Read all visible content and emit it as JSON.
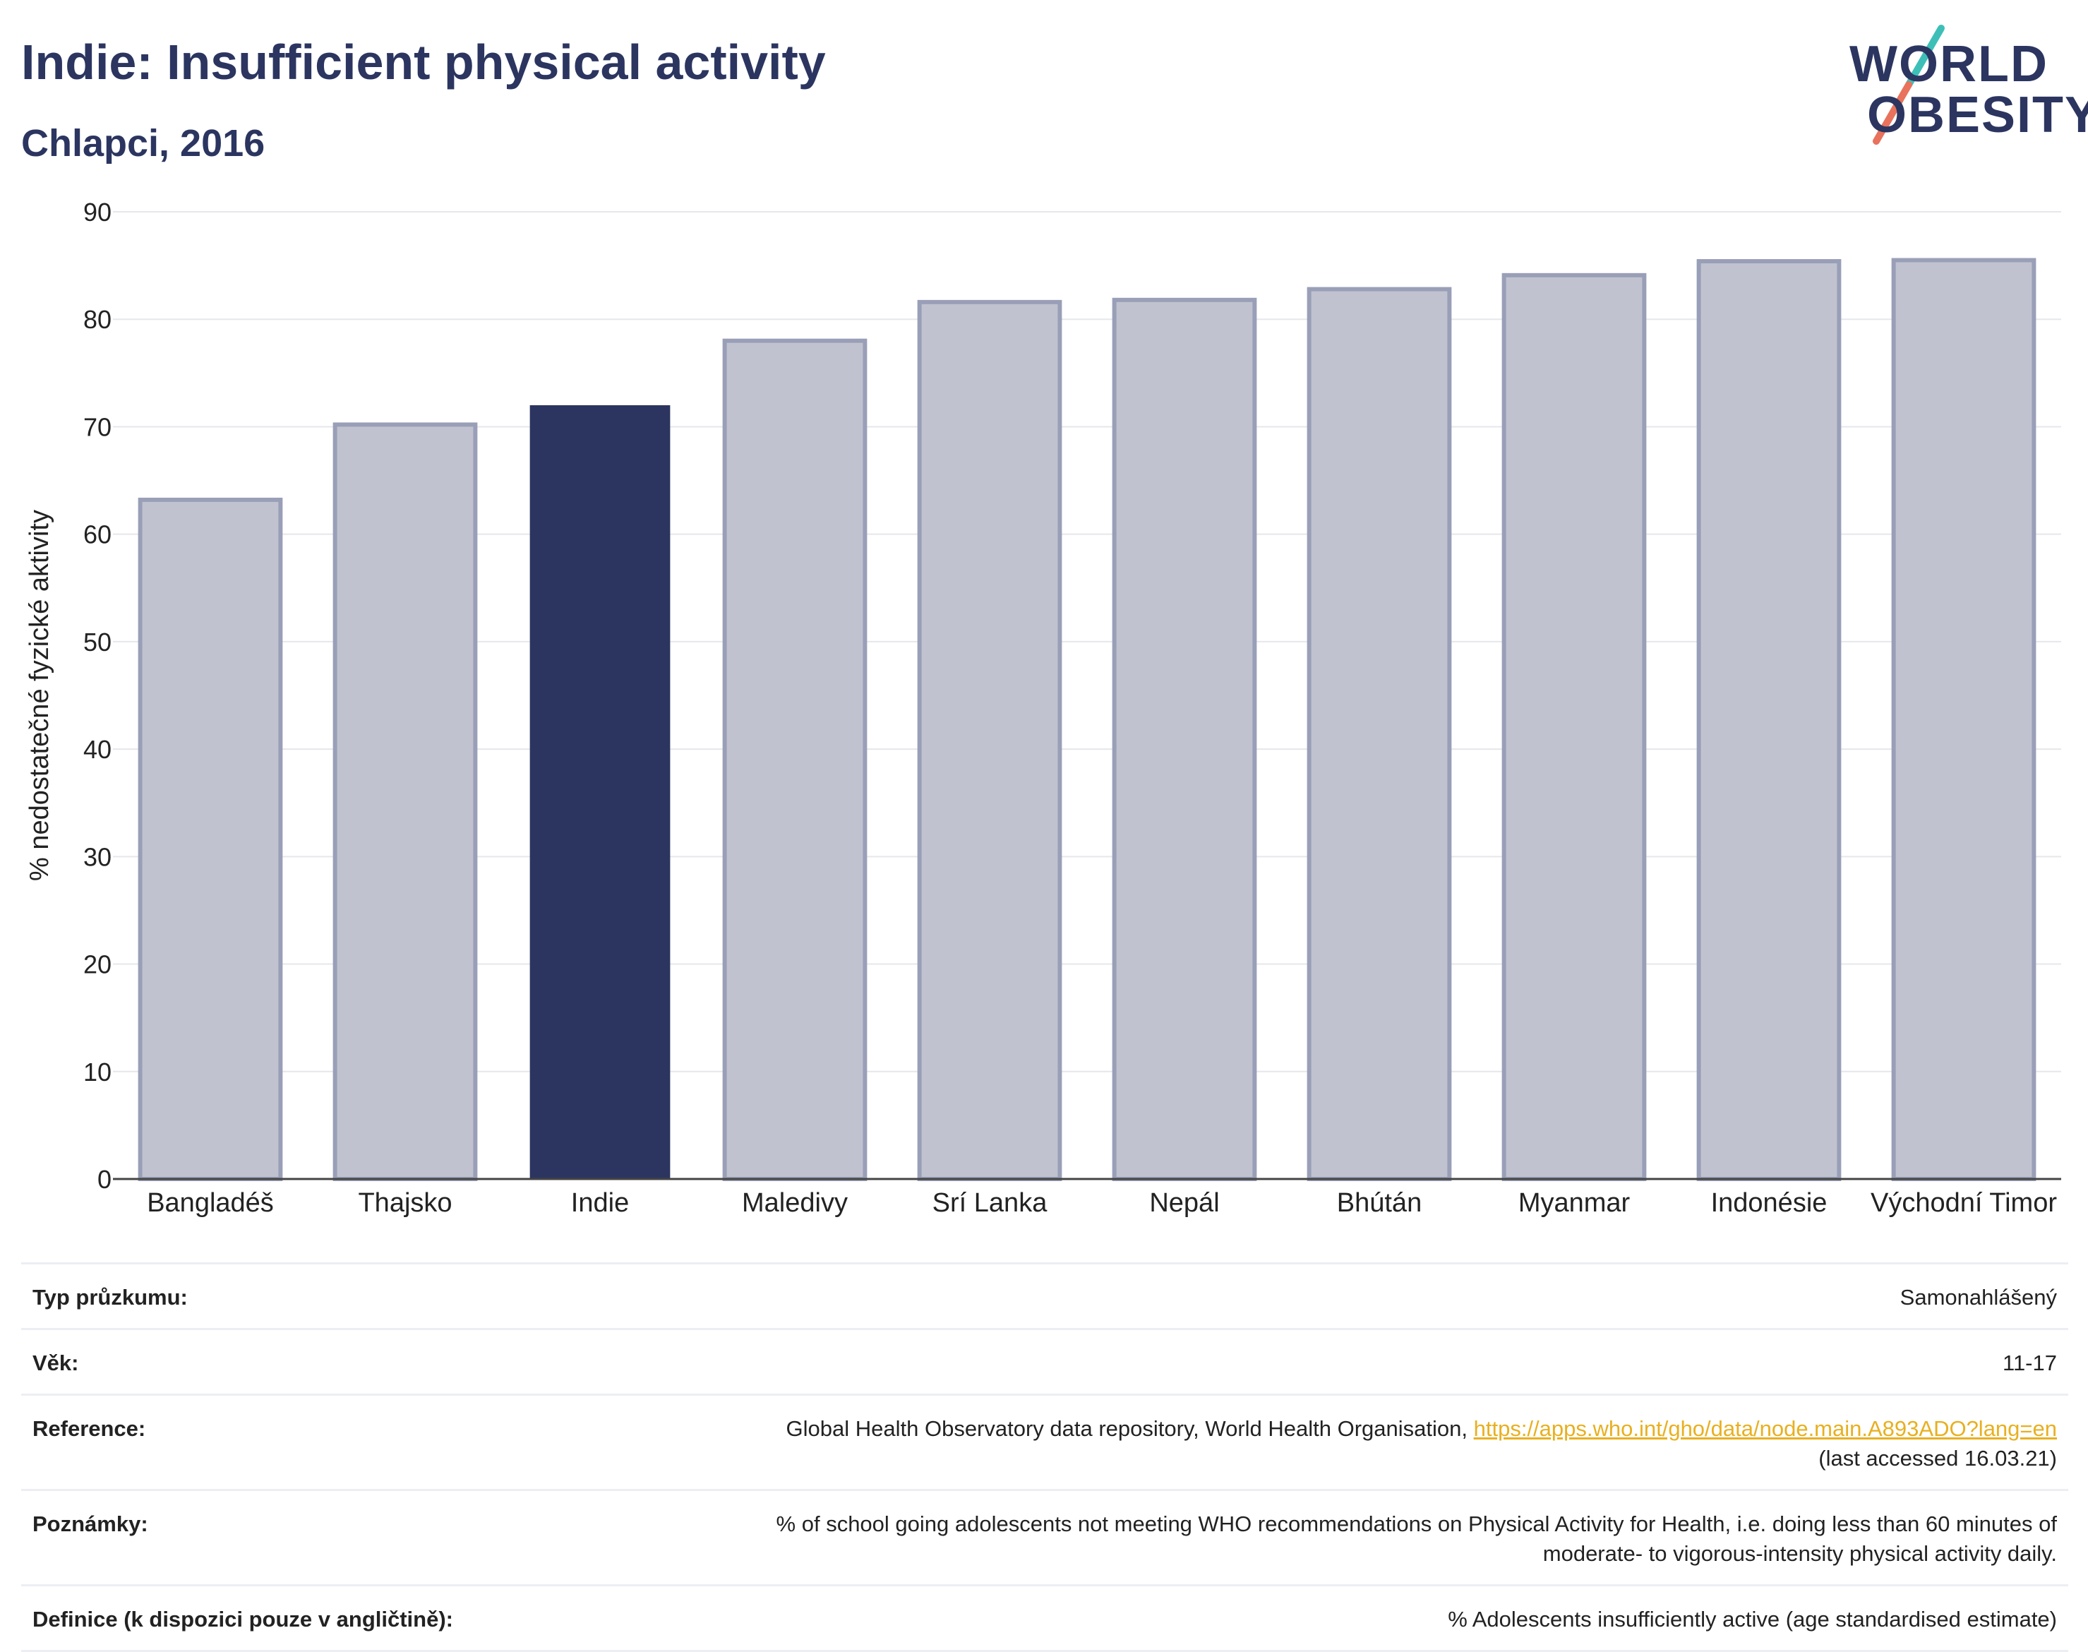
{
  "header": {
    "title": "Indie: Insufficient physical activity",
    "subtitle": "Chlapci, 2016"
  },
  "logo": {
    "line1": "WORLD",
    "line2": "OBESITY",
    "text": "WORLD OBESITY",
    "colors": {
      "text": "#2b3560",
      "slash_teal": "#3dbfb8",
      "slash_coral": "#e8725c"
    }
  },
  "chart_data": {
    "type": "bar",
    "title": "Indie: Insufficient physical activity",
    "subtitle": "Chlapci, 2016",
    "xlabel": "",
    "ylabel": "% nedostatečné fyzické aktivity",
    "ylim": [
      0,
      90
    ],
    "yticks": [
      0,
      10,
      20,
      30,
      40,
      50,
      60,
      70,
      80,
      90
    ],
    "grid": true,
    "categories": [
      "Bangladéš",
      "Thajsko",
      "Indie",
      "Maledivy",
      "Srí Lanka",
      "Nepál",
      "Bhútán",
      "Myanmar",
      "Indonésie",
      "Východní Timor"
    ],
    "values": [
      63.2,
      70.2,
      72.0,
      78.0,
      81.6,
      81.8,
      82.8,
      84.1,
      85.4,
      85.5
    ],
    "highlight": "Indie",
    "colors": {
      "highlight": "#2b3560",
      "other_fill": "#c0c3cf",
      "other_stroke": "#9a9fb8"
    }
  },
  "table": {
    "rows": [
      {
        "label": "Typ průzkumu:",
        "value": "Samonahlášený"
      },
      {
        "label": "Věk:",
        "value": "11-17"
      },
      {
        "label": "Reference:",
        "value": "Global Health Observatory data repository, World Health Organisation, ",
        "link": "https://apps.who.int/gho/data/node.main.A893ADO?lang=en",
        "value2": "(last accessed 16.03.21)"
      },
      {
        "label": "Poznámky:",
        "value": "% of school going adolescents not meeting WHO recommendations on Physical Activity for Health, i.e. doing less than 60 minutes of",
        "value2": "moderate- to vigorous-intensity physical activity daily."
      },
      {
        "label": "Definice (k dispozici pouze v angličtině):",
        "value": "% Adolescents insufficiently active (age standardised estimate)"
      }
    ]
  }
}
